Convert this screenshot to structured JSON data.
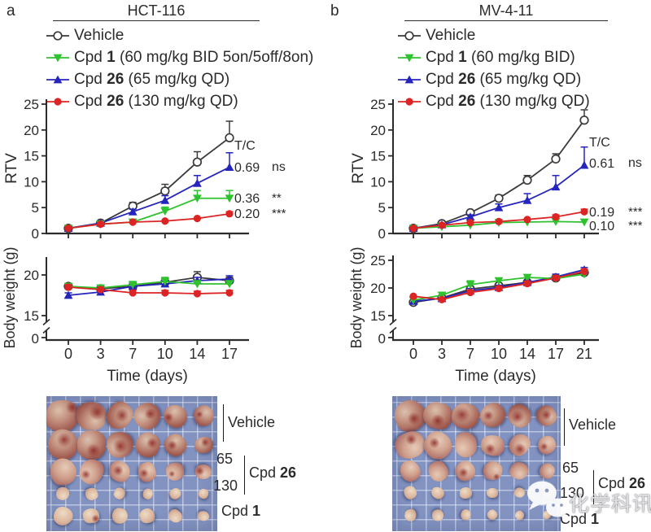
{
  "colors": {
    "vehicle": "#3a3a3a",
    "green": "#2ec32e",
    "blue": "#2525bd",
    "red": "#dd2424",
    "photo_background": "#8393c1"
  },
  "watermark": {
    "text": "化学科讯",
    "icon": "wechat-icon"
  },
  "chart_data": {
    "type": "line",
    "panels": [
      {
        "panel_label": "a",
        "title": "HCT-116",
        "xlabel": "Time (days)",
        "legend": [
          {
            "pre": "",
            "bold": "",
            "rest": "Vehicle",
            "color": "vehicle",
            "marker": "circle-open"
          },
          {
            "pre": "Cpd ",
            "bold": "1",
            "rest": " (60 mg/kg BID 5on/5off/8on)",
            "color": "green",
            "marker": "triangle-down"
          },
          {
            "pre": "Cpd ",
            "bold": "26",
            "rest": " (65 mg/kg QD)",
            "color": "blue",
            "marker": "triangle-up"
          },
          {
            "pre": "Cpd ",
            "bold": "26",
            "rest": " (130 mg/kg QD)",
            "color": "red",
            "marker": "circle"
          }
        ],
        "rtv": {
          "ylabel": "RTV",
          "ylim": [
            0,
            25
          ],
          "yticks": [
            0,
            5,
            10,
            15,
            20,
            25
          ],
          "x_days": [
            0,
            3,
            7,
            10,
            14,
            17
          ],
          "series": [
            {
              "name": "Vehicle",
              "color": "vehicle",
              "marker": "circle-open",
              "values": [
                1,
                2,
                5.3,
                8.2,
                13.8,
                18.5
              ],
              "errors": [
                0.2,
                0.3,
                0.7,
                1.3,
                2.0,
                3.2
              ]
            },
            {
              "name": "Cpd 1 (60 mg/kg BID 5on/5off/8on)",
              "color": "green",
              "marker": "triangle-down",
              "values": [
                1,
                1.8,
                2.2,
                4.3,
                6.8,
                6.8
              ],
              "errors": [
                0.1,
                0.2,
                0.3,
                0.8,
                1.5,
                1.5
              ]
            },
            {
              "name": "Cpd 26 (65 mg/kg QD)",
              "color": "blue",
              "marker": "triangle-up",
              "values": [
                1,
                2,
                4.2,
                6.4,
                9.7,
                12.8
              ],
              "errors": [
                0.15,
                0.25,
                0.5,
                0.9,
                1.5,
                2.8
              ]
            },
            {
              "name": "Cpd 26 (130 mg/kg QD)",
              "color": "red",
              "marker": "circle",
              "values": [
                1,
                1.8,
                2.2,
                2.4,
                2.9,
                3.8
              ],
              "errors": [
                0.1,
                0.15,
                0.2,
                0.3,
                0.35,
                0.4
              ]
            }
          ],
          "tc_header": "T/C",
          "tc_entries": [
            {
              "value": "0.69",
              "sig": "ns",
              "series": "Cpd 26 (65 mg/kg QD)"
            },
            {
              "value": "0.36",
              "sig": "**",
              "series": "Cpd 1 (60 mg/kg BID 5on/5off/8on)"
            },
            {
              "value": "0.20",
              "sig": "***",
              "series": "Cpd 26 (130 mg/kg QD)"
            }
          ]
        },
        "body_weight": {
          "ylabel": "Body weight (g)",
          "yticks": [
            15,
            20
          ],
          "zero_tick_label": "0",
          "axis_break": true,
          "x_days": [
            0,
            3,
            7,
            10,
            14,
            17
          ],
          "series": [
            {
              "name": "Vehicle",
              "color": "vehicle",
              "marker": "circle-open",
              "values": [
                18.6,
                18.3,
                18.6,
                19.1,
                19.7,
                19.3
              ],
              "errors": [
                0.3,
                0.3,
                0.4,
                0.5,
                0.7,
                0.4
              ]
            },
            {
              "name": "Cpd 1 (60 mg/kg BID 5on/5off/8on)",
              "color": "green",
              "marker": "triangle-down",
              "values": [
                18.6,
                18.4,
                18.8,
                19.2,
                18.9,
                18.9
              ],
              "errors": [
                0.3,
                0.3,
                0.4,
                0.5,
                0.4,
                0.4
              ]
            },
            {
              "name": "Cpd 26 (65 mg/kg QD)",
              "color": "blue",
              "marker": "triangle-up",
              "values": [
                17.5,
                17.9,
                18.6,
                18.9,
                19.3,
                19.5
              ],
              "errors": [
                0.3,
                0.3,
                0.4,
                0.4,
                0.4,
                0.4
              ]
            },
            {
              "name": "Cpd 26 (130 mg/kg QD)",
              "color": "red",
              "marker": "circle",
              "values": [
                18.5,
                18.2,
                17.8,
                17.8,
                17.7,
                17.8
              ],
              "errors": [
                0.3,
                0.3,
                0.3,
                0.3,
                0.3,
                0.3
              ]
            }
          ]
        },
        "photo": {
          "vehicle_label": "Vehicle",
          "dose65_label": "65",
          "dose130_label": "130",
          "cpd26_pre": "Cpd ",
          "cpd26_bold": "26",
          "cpd1_pre": "Cpd ",
          "cpd1_bold": "1"
        }
      },
      {
        "panel_label": "b",
        "title": "MV-4-11",
        "xlabel": "Time (days)",
        "legend": [
          {
            "pre": "",
            "bold": "",
            "rest": "Vehicle",
            "color": "vehicle",
            "marker": "circle-open"
          },
          {
            "pre": "Cpd ",
            "bold": "1",
            "rest": " (60 mg/kg BID)",
            "color": "green",
            "marker": "triangle-down"
          },
          {
            "pre": "Cpd ",
            "bold": "26",
            "rest": " (65 mg/kg QD)",
            "color": "blue",
            "marker": "triangle-up"
          },
          {
            "pre": "Cpd ",
            "bold": "26",
            "rest": " (130 mg/kg QD)",
            "color": "red",
            "marker": "circle"
          }
        ],
        "rtv": {
          "ylabel": "RTV",
          "ylim": [
            0,
            25
          ],
          "yticks": [
            0,
            5,
            10,
            15,
            20,
            25
          ],
          "x_days": [
            0,
            3,
            7,
            10,
            14,
            17,
            21
          ],
          "series": [
            {
              "name": "Vehicle",
              "color": "vehicle",
              "marker": "circle-open",
              "values": [
                1,
                1.9,
                4.0,
                6.8,
                10.3,
                14.4,
                21.9
              ],
              "errors": [
                0.1,
                0.2,
                0.4,
                0.6,
                0.9,
                1.0,
                2.0
              ]
            },
            {
              "name": "Cpd 1 (60 mg/kg BID)",
              "color": "green",
              "marker": "triangle-down",
              "values": [
                1,
                1.3,
                1.6,
                2.1,
                2.2,
                2.3,
                2.2
              ],
              "errors": [
                0.1,
                0.15,
                0.2,
                0.25,
                0.25,
                0.3,
                0.3
              ]
            },
            {
              "name": "Cpd 26 (65 mg/kg QD)",
              "color": "blue",
              "marker": "triangle-up",
              "values": [
                1,
                1.7,
                3.2,
                5.0,
                6.4,
                9.0,
                13.2
              ],
              "errors": [
                0.1,
                0.2,
                0.4,
                0.7,
                1.3,
                2.2,
                3.5
              ]
            },
            {
              "name": "Cpd 26 (130 mg/kg QD)",
              "color": "red",
              "marker": "circle",
              "values": [
                1,
                1.6,
                2.1,
                2.3,
                2.7,
                3.2,
                4.2
              ],
              "errors": [
                0.1,
                0.1,
                0.25,
                0.3,
                0.3,
                0.4,
                0.5
              ]
            }
          ],
          "tc_header": "T/C",
          "tc_entries": [
            {
              "value": "0.61",
              "sig": "ns",
              "series": "Cpd 26 (65 mg/kg QD)"
            },
            {
              "value": "0.19",
              "sig": "***",
              "series": "Cpd 26 (130 mg/kg QD)"
            },
            {
              "value": "0.10",
              "sig": "***",
              "series": "Cpd 1 (60 mg/kg BID)"
            }
          ]
        },
        "body_weight": {
          "ylabel": "Body weight (g)",
          "yticks": [
            15,
            20,
            25
          ],
          "zero_tick_label": "0",
          "axis_break": true,
          "x_days": [
            0,
            3,
            7,
            10,
            14,
            17,
            21
          ],
          "series": [
            {
              "name": "Vehicle",
              "color": "vehicle",
              "marker": "circle-open",
              "values": [
                17.4,
                18.2,
                19.8,
                20.4,
                21.0,
                21.8,
                22.8
              ],
              "errors": [
                0.4,
                0.4,
                0.5,
                0.4,
                0.4,
                0.4,
                0.4
              ]
            },
            {
              "name": "Cpd 1 (60 mg/kg BID)",
              "color": "green",
              "marker": "triangle-down",
              "values": [
                17.8,
                18.7,
                20.6,
                21.3,
                21.9,
                21.7,
                22.5
              ],
              "errors": [
                0.4,
                0.5,
                0.7,
                0.5,
                0.5,
                0.5,
                0.4
              ]
            },
            {
              "name": "Cpd 26 (65 mg/kg QD)",
              "color": "blue",
              "marker": "triangle-up",
              "values": [
                17.6,
                18.1,
                19.5,
                20.1,
                21.0,
                22.0,
                23.3
              ],
              "errors": [
                0.3,
                0.3,
                0.4,
                0.4,
                0.4,
                0.5,
                0.4
              ]
            },
            {
              "name": "Cpd 26 (130 mg/kg QD)",
              "color": "red",
              "marker": "circle",
              "values": [
                18.5,
                17.9,
                19.2,
                19.9,
                20.8,
                21.8,
                23.0
              ],
              "errors": [
                0.3,
                0.3,
                0.4,
                0.4,
                0.4,
                0.4,
                0.4
              ]
            }
          ]
        },
        "photo": {
          "vehicle_label": "Vehicle",
          "dose65_label": "65",
          "dose130_label": "130",
          "cpd26_pre": "Cpd ",
          "cpd26_bold": "26",
          "cpd1_pre": "Cpd ",
          "cpd1_bold": "1"
        }
      }
    ]
  }
}
